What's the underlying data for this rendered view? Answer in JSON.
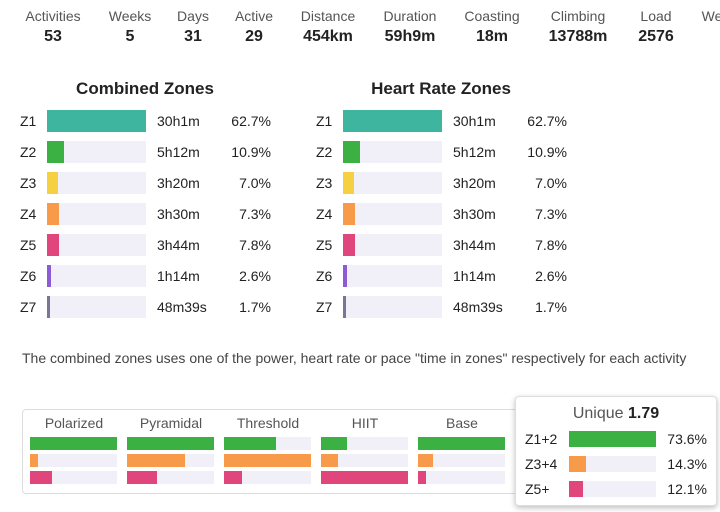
{
  "stats": [
    {
      "label": "Activities",
      "value": "53"
    },
    {
      "label": "Weeks",
      "value": "5"
    },
    {
      "label": "Days",
      "value": "31"
    },
    {
      "label": "Active",
      "value": "29"
    },
    {
      "label": "Distance",
      "value": "454km"
    },
    {
      "label": "Duration",
      "value": "59h9m"
    },
    {
      "label": "Coasting",
      "value": "18m"
    },
    {
      "label": "Climbing",
      "value": "13788m"
    },
    {
      "label": "Load",
      "value": "2576"
    },
    {
      "label": "We",
      "value": ""
    }
  ],
  "zone_colors": [
    "#3db59f",
    "#3bb143",
    "#f5d142",
    "#f79a4a",
    "#e0457b",
    "#8b5cd6",
    "#7d7394"
  ],
  "panels": [
    {
      "title": "Combined Zones",
      "rows": [
        {
          "zone": "Z1",
          "duration": "30h1m",
          "percent": 62.7,
          "percent_label": "62.7%"
        },
        {
          "zone": "Z2",
          "duration": "5h12m",
          "percent": 10.9,
          "percent_label": "10.9%"
        },
        {
          "zone": "Z3",
          "duration": "3h20m",
          "percent": 7.0,
          "percent_label": "7.0%"
        },
        {
          "zone": "Z4",
          "duration": "3h30m",
          "percent": 7.3,
          "percent_label": "7.3%"
        },
        {
          "zone": "Z5",
          "duration": "3h44m",
          "percent": 7.8,
          "percent_label": "7.8%"
        },
        {
          "zone": "Z6",
          "duration": "1h14m",
          "percent": 2.6,
          "percent_label": "2.6%"
        },
        {
          "zone": "Z7",
          "duration": "48m39s",
          "percent": 1.7,
          "percent_label": "1.7%"
        }
      ]
    },
    {
      "title": "Heart Rate Zones",
      "rows": [
        {
          "zone": "Z1",
          "duration": "30h1m",
          "percent": 62.7,
          "percent_label": "62.7%"
        },
        {
          "zone": "Z2",
          "duration": "5h12m",
          "percent": 10.9,
          "percent_label": "10.9%"
        },
        {
          "zone": "Z3",
          "duration": "3h20m",
          "percent": 7.0,
          "percent_label": "7.0%"
        },
        {
          "zone": "Z4",
          "duration": "3h30m",
          "percent": 7.3,
          "percent_label": "7.3%"
        },
        {
          "zone": "Z5",
          "duration": "3h44m",
          "percent": 7.8,
          "percent_label": "7.8%"
        },
        {
          "zone": "Z6",
          "duration": "1h14m",
          "percent": 2.6,
          "percent_label": "2.6%"
        },
        {
          "zone": "Z7",
          "duration": "48m39s",
          "percent": 1.7,
          "percent_label": "1.7%"
        }
      ]
    }
  ],
  "footnote": "The combined zones uses one of the power, heart rate or pace \"time in zones\" respectively for each activity",
  "model_colors": [
    "#3bb143",
    "#f79a4a",
    "#e0457b"
  ],
  "models": [
    {
      "name": "Polarized",
      "fills": [
        100,
        9,
        25
      ]
    },
    {
      "name": "Pyramidal",
      "fills": [
        100,
        67,
        34
      ]
    },
    {
      "name": "Threshold",
      "fills": [
        60,
        100,
        21
      ]
    },
    {
      "name": "HIIT",
      "fills": [
        30,
        20,
        100
      ]
    },
    {
      "name": "Base",
      "fills": [
        100,
        17,
        9
      ]
    }
  ],
  "unique": {
    "label": "Unique",
    "value": 1.79,
    "rows": [
      {
        "zone": "Z1+2",
        "percent": 73.6,
        "percent_label": "73.6%",
        "color": "#3bb143"
      },
      {
        "zone": "Z3+4",
        "percent": 14.3,
        "percent_label": "14.3%",
        "color": "#f79a4a"
      },
      {
        "zone": "Z5+",
        "percent": 12.1,
        "percent_label": "12.1%",
        "color": "#e0457b"
      }
    ]
  }
}
